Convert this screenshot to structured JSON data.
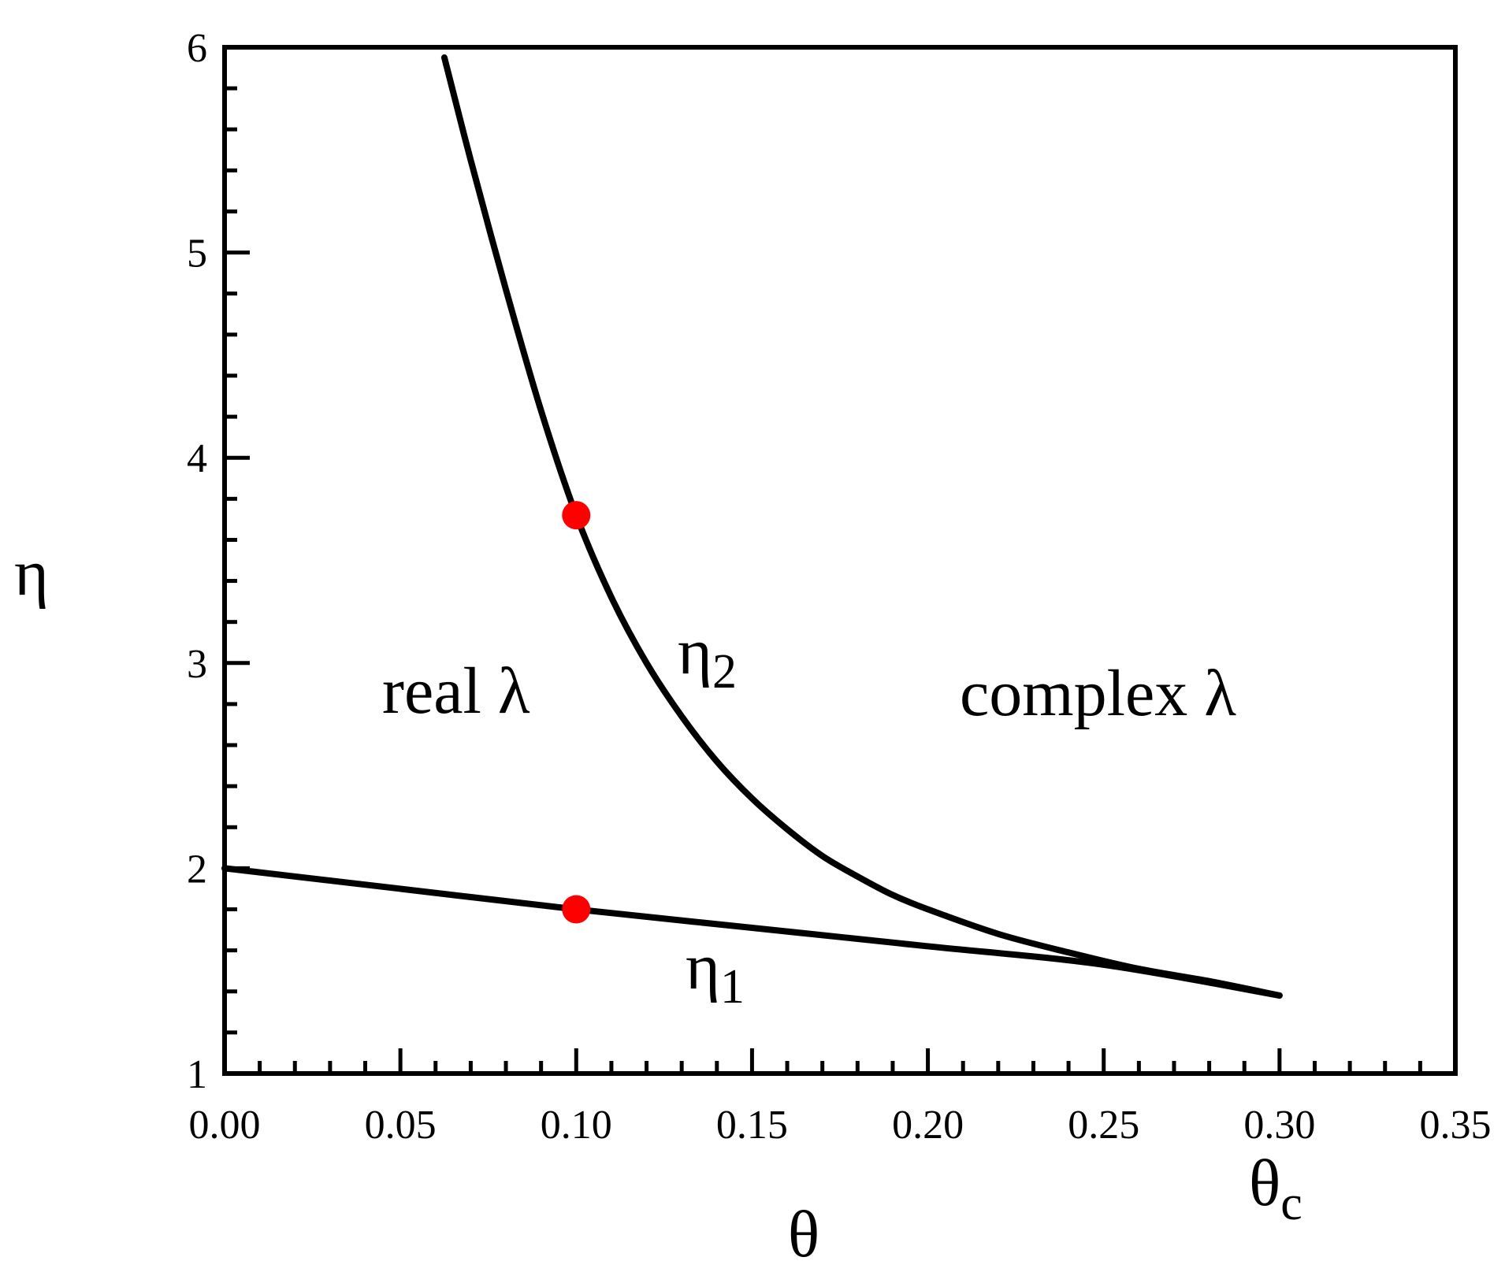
{
  "chart_data": {
    "type": "line",
    "xlabel": "θ",
    "ylabel": "η",
    "xlim": [
      0.0,
      0.35
    ],
    "ylim": [
      1,
      6
    ],
    "x_ticks": [
      "0.00",
      "0.05",
      "0.10",
      "0.15",
      "0.20",
      "0.25",
      "0.30",
      "0.35"
    ],
    "y_ticks": [
      "1",
      "2",
      "3",
      "4",
      "5",
      "6"
    ],
    "x_minor_step": 0.01,
    "y_minor_step": 0.2,
    "grid": false,
    "series": [
      {
        "name": "η1",
        "color": "#000000",
        "x": [
          0.0,
          0.05,
          0.1,
          0.15,
          0.2,
          0.25,
          0.3
        ],
        "y": [
          2.0,
          1.9,
          1.8,
          1.71,
          1.62,
          1.53,
          1.38
        ]
      },
      {
        "name": "η2",
        "color": "#000000",
        "x": [
          0.0625,
          0.07,
          0.08,
          0.09,
          0.1,
          0.11,
          0.12,
          0.13,
          0.14,
          0.15,
          0.16,
          0.17,
          0.18,
          0.19,
          0.2,
          0.22,
          0.24,
          0.26,
          0.28,
          0.3
        ],
        "y": [
          5.95,
          5.45,
          4.82,
          4.23,
          3.72,
          3.32,
          3.0,
          2.74,
          2.52,
          2.34,
          2.19,
          2.06,
          1.96,
          1.87,
          1.8,
          1.68,
          1.59,
          1.51,
          1.45,
          1.38
        ]
      }
    ],
    "markers": [
      {
        "x": 0.1,
        "y": 3.72,
        "color": "#ff0000"
      },
      {
        "x": 0.1,
        "y": 1.8,
        "color": "#ff0000"
      }
    ],
    "annotations": {
      "real": "real λ",
      "complex": "complex λ",
      "eta1_base": "η",
      "eta1_sub": "1",
      "eta2_base": "η",
      "eta2_sub": "2",
      "theta_c_base": "θ",
      "theta_c_sub": "c"
    }
  }
}
